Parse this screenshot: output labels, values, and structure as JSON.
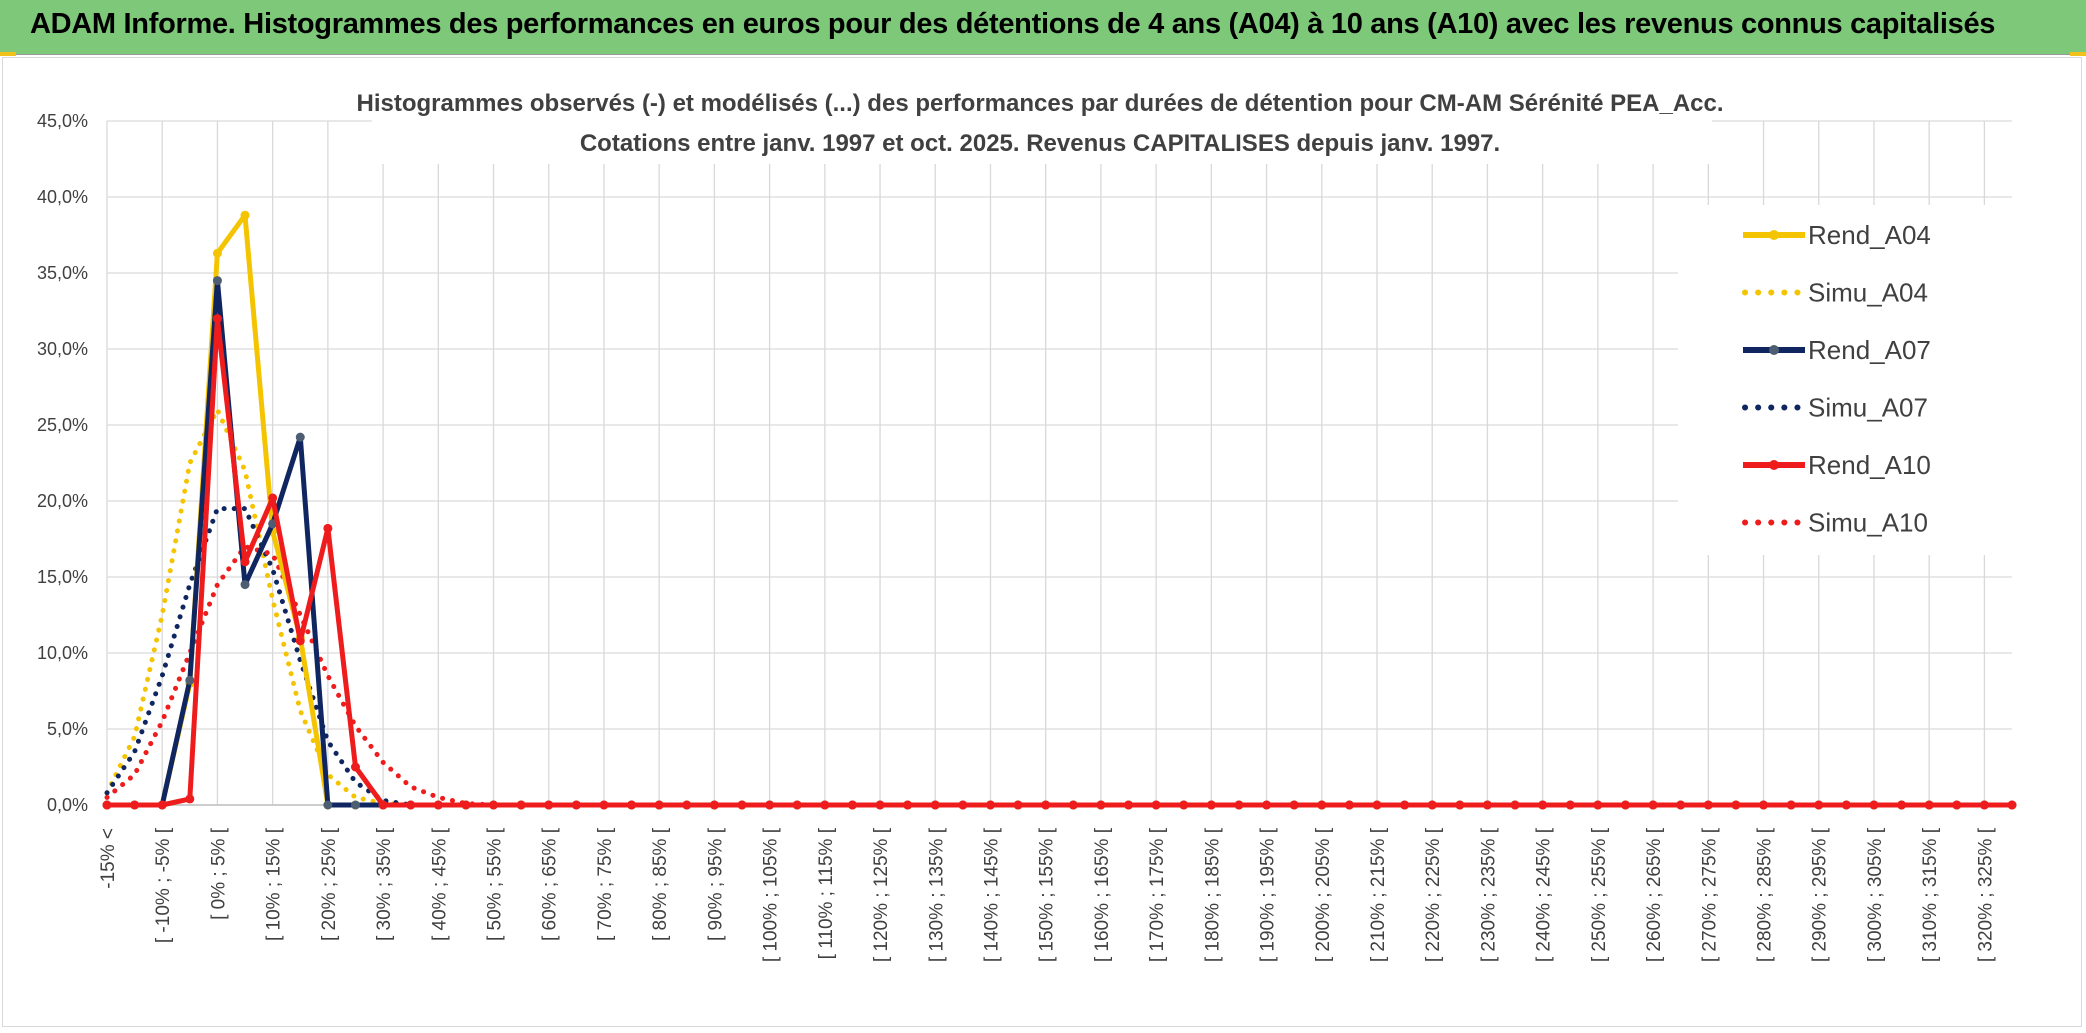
{
  "header": {
    "title": "ADAM Informe. Histogrammes des performances en euros pour des détentions de 4 ans (A04) à 10 ans (A10) avec les revenus connus capitalisés"
  },
  "chart_data": {
    "type": "line",
    "title": "Histogrammes observés (-) et modélisés (...) des performances par durées de détention pour CM-AM Sérénité PEA_Acc.",
    "subtitle": "Cotations entre janv. 1997 et oct. 2025. Revenus CAPITALISES depuis janv. 1997.",
    "xlabel": "",
    "ylabel": "",
    "ylim": [
      0,
      45
    ],
    "y_ticks": [
      "0,0%",
      "5,0%",
      "10,0%",
      "15,0%",
      "20,0%",
      "25,0%",
      "30,0%",
      "35,0%",
      "40,0%",
      "45,0%"
    ],
    "x_tick_labels": [
      "-15% <",
      "[ -10% ; -5% [",
      "[ 0% ; 5% [",
      "[ 10% ; 15% [",
      "[ 20% ; 25% [",
      "[ 30% ; 35% [",
      "[ 40% ; 45% [",
      "[ 50% ; 55% [",
      "[ 60% ; 65% [",
      "[ 70% ; 75% [",
      "[ 80% ; 85% [",
      "[ 90% ; 95% [",
      "[ 100% ; 105% [",
      "[ 110% ; 115% [",
      "[ 120% ; 125% [",
      "[ 130% ; 135% [",
      "[ 140% ; 145% [",
      "[ 150% ; 155% [",
      "[ 160% ; 165% [",
      "[ 170% ; 175% [",
      "[ 180% ; 185% [",
      "[ 190% ; 195% [",
      "[ 200% ; 205% [",
      "[ 210% ; 215% [",
      "[ 220% ; 225% [",
      "[ 230% ; 235% [",
      "[ 240% ; 245% [",
      "[ 250% ; 255% [",
      "[ 260% ; 265% [",
      "[ 270% ; 275% [",
      "[ 280% ; 285% [",
      "[ 290% ; 295% [",
      "[ 300% ; 305% [",
      "[ 310% ; 315% [",
      "[ 320% ; 325% ["
    ],
    "grid": true,
    "legend_position": "right",
    "series": [
      {
        "name": "Rend_A04",
        "style": "solid",
        "marker": true,
        "color": "#f5c400",
        "values": [
          0,
          0,
          0,
          8.0,
          36.3,
          38.8,
          18.0,
          11.0,
          0,
          0,
          0
        ]
      },
      {
        "name": "Simu_A04",
        "style": "dotted",
        "marker": false,
        "color": "#f5c400",
        "values": [
          0.8,
          4.5,
          12.5,
          22.5,
          26.0,
          22.0,
          13.5,
          6.2,
          2.0,
          0.5,
          0.1
        ]
      },
      {
        "name": "Rend_A07",
        "style": "solid",
        "marker": true,
        "color": "#0f2660",
        "values": [
          0,
          0,
          0,
          8.2,
          34.5,
          14.5,
          18.5,
          24.2,
          0,
          0,
          0
        ]
      },
      {
        "name": "Simu_A07",
        "style": "dotted",
        "marker": false,
        "color": "#0f2660",
        "values": [
          0.8,
          3.5,
          8.5,
          14.5,
          19.5,
          19.5,
          15.5,
          9.5,
          4.2,
          1.5,
          0.3
        ]
      },
      {
        "name": "Rend_A10",
        "style": "solid",
        "marker": true,
        "color": "#ee1c1c",
        "values": [
          0,
          0,
          0,
          0.4,
          32.0,
          16.0,
          20.2,
          10.8,
          18.2,
          2.5,
          0
        ]
      },
      {
        "name": "Simu_A10",
        "style": "dotted",
        "marker": false,
        "color": "#ee1c1c",
        "values": [
          0.5,
          2.0,
          5.5,
          10.0,
          14.5,
          17.0,
          16.5,
          12.5,
          8.5,
          5.2,
          2.8,
          1.2,
          0.5,
          0.1
        ]
      }
    ]
  }
}
